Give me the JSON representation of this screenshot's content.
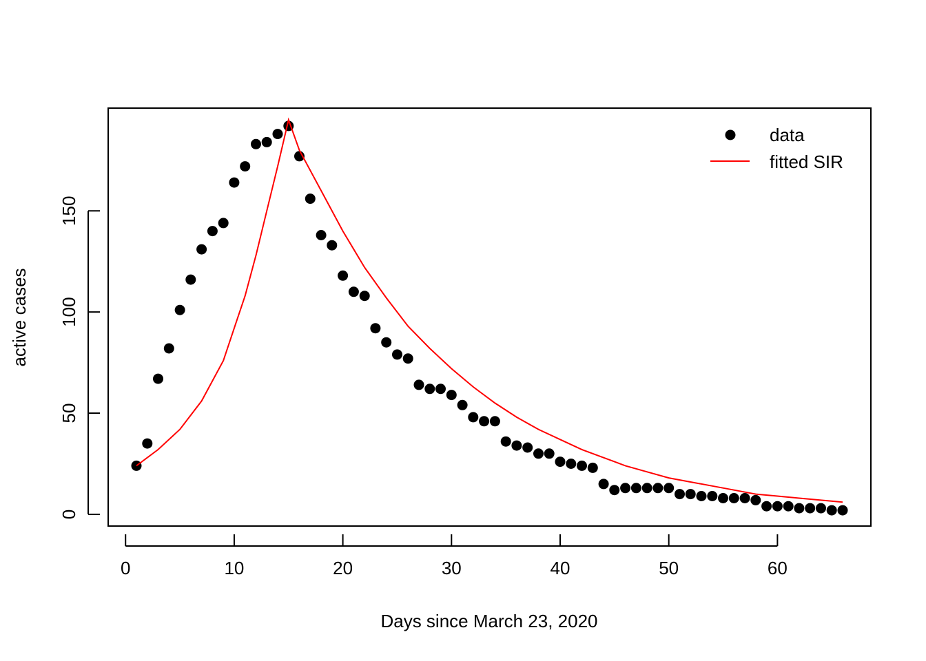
{
  "chart_data": {
    "type": "scatter",
    "xlabel": "Days since March 23, 2020",
    "ylabel": "active cases",
    "xlim": [
      -1.6,
      68.6
    ],
    "ylim": [
      -5.8,
      200.8
    ],
    "xticks": [
      0,
      10,
      20,
      30,
      40,
      50,
      60
    ],
    "yticks": [
      0,
      50,
      100,
      150
    ],
    "legend_position": "top-right",
    "grid": false,
    "series": [
      {
        "name": "data",
        "kind": "points",
        "color": "#000000",
        "x": [
          1,
          2,
          3,
          4,
          5,
          6,
          7,
          8,
          9,
          10,
          11,
          12,
          13,
          14,
          15,
          16,
          17,
          18,
          19,
          20,
          21,
          22,
          23,
          24,
          25,
          26,
          27,
          28,
          29,
          30,
          31,
          32,
          33,
          34,
          35,
          36,
          37,
          38,
          39,
          40,
          41,
          42,
          43,
          44,
          45,
          46,
          47,
          48,
          49,
          50,
          51,
          52,
          53,
          54,
          55,
          56,
          57,
          58,
          59,
          60,
          61,
          62,
          63,
          64,
          65,
          66
        ],
        "y": [
          24,
          35,
          67,
          82,
          101,
          116,
          131,
          140,
          144,
          164,
          172,
          183,
          184,
          188,
          192,
          177,
          156,
          138,
          133,
          118,
          110,
          108,
          92,
          85,
          79,
          77,
          64,
          62,
          62,
          59,
          54,
          48,
          46,
          46,
          36,
          34,
          33,
          30,
          30,
          26,
          25,
          24,
          23,
          15,
          12,
          13,
          13,
          13,
          13,
          13,
          10,
          10,
          9,
          9,
          8,
          8,
          8,
          7,
          4,
          4,
          4,
          3,
          3,
          3,
          2,
          2
        ]
      },
      {
        "name": "fitted SIR",
        "kind": "line",
        "color": "#ff0000",
        "x": [
          1,
          3,
          5,
          7,
          9,
          10,
          11,
          12,
          13,
          14,
          15,
          16,
          18,
          20,
          22,
          24,
          26,
          28,
          30,
          32,
          34,
          36,
          38,
          40,
          42,
          44,
          46,
          48,
          50,
          52,
          54,
          56,
          58,
          60,
          62,
          64,
          66
        ],
        "y": [
          24,
          32,
          42,
          56,
          76,
          92,
          108,
          128,
          150,
          172,
          195,
          180,
          160,
          140,
          122,
          107,
          93,
          82,
          72,
          63,
          55,
          48,
          42,
          37,
          32,
          28,
          24,
          21,
          18,
          16,
          14,
          12,
          10,
          9,
          8,
          7,
          6
        ]
      }
    ]
  }
}
